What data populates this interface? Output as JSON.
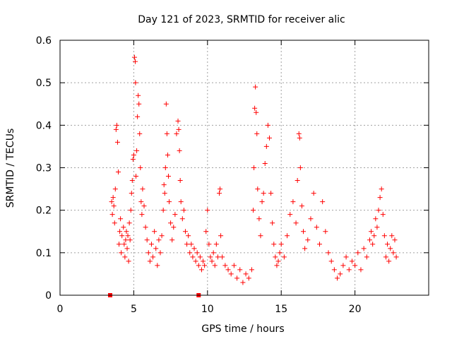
{
  "chart_data": {
    "type": "scatter",
    "title": "Day 121 of 2023, SRMTID for receiver alic",
    "xlabel": "GPS time / hours",
    "ylabel": "SRMTID / TECUs",
    "xlim": [
      0,
      25
    ],
    "ylim": [
      0,
      0.6
    ],
    "xticks": [
      0,
      5,
      10,
      15,
      20
    ],
    "xtick_labels": [
      "0",
      "5",
      "10",
      "15",
      "20"
    ],
    "yticks": [
      0,
      0.1,
      0.2,
      0.3,
      0.4,
      0.5,
      0.6
    ],
    "ytick_labels": [
      "0",
      "0.1",
      "0.2",
      "0.3",
      "0.4",
      "0.5",
      "0.6"
    ],
    "grid": true,
    "marker": "+",
    "series": [
      {
        "name": "SRMTID",
        "color": "#ff0000",
        "points": [
          [
            3.5,
            0.22
          ],
          [
            3.55,
            0.19
          ],
          [
            3.6,
            0.23
          ],
          [
            3.65,
            0.21
          ],
          [
            3.7,
            0.17
          ],
          [
            3.75,
            0.25
          ],
          [
            3.8,
            0.39
          ],
          [
            3.85,
            0.4
          ],
          [
            3.9,
            0.36
          ],
          [
            3.95,
            0.29
          ],
          [
            4.0,
            0.12
          ],
          [
            4.05,
            0.15
          ],
          [
            4.1,
            0.18
          ],
          [
            4.15,
            0.1
          ],
          [
            4.2,
            0.14
          ],
          [
            4.3,
            0.16
          ],
          [
            4.35,
            0.12
          ],
          [
            4.4,
            0.09
          ],
          [
            4.45,
            0.13
          ],
          [
            4.5,
            0.15
          ],
          [
            4.55,
            0.11
          ],
          [
            4.6,
            0.14
          ],
          [
            4.65,
            0.08
          ],
          [
            4.7,
            0.17
          ],
          [
            4.75,
            0.13
          ],
          [
            4.8,
            0.2
          ],
          [
            4.85,
            0.24
          ],
          [
            4.9,
            0.27
          ],
          [
            4.95,
            0.32
          ],
          [
            5.0,
            0.33
          ],
          [
            5.05,
            0.56
          ],
          [
            5.1,
            0.55
          ],
          [
            5.12,
            0.5
          ],
          [
            5.15,
            0.28
          ],
          [
            5.2,
            0.34
          ],
          [
            5.25,
            0.42
          ],
          [
            5.3,
            0.47
          ],
          [
            5.35,
            0.45
          ],
          [
            5.4,
            0.38
          ],
          [
            5.45,
            0.3
          ],
          [
            5.5,
            0.22
          ],
          [
            5.55,
            0.19
          ],
          [
            5.6,
            0.25
          ],
          [
            5.7,
            0.21
          ],
          [
            5.8,
            0.16
          ],
          [
            5.9,
            0.13
          ],
          [
            6.0,
            0.1
          ],
          [
            6.1,
            0.08
          ],
          [
            6.2,
            0.12
          ],
          [
            6.3,
            0.09
          ],
          [
            6.4,
            0.15
          ],
          [
            6.5,
            0.11
          ],
          [
            6.6,
            0.07
          ],
          [
            6.7,
            0.13
          ],
          [
            6.8,
            0.1
          ],
          [
            6.9,
            0.14
          ],
          [
            7.0,
            0.2
          ],
          [
            7.05,
            0.26
          ],
          [
            7.1,
            0.24
          ],
          [
            7.15,
            0.3
          ],
          [
            7.2,
            0.45
          ],
          [
            7.25,
            0.38
          ],
          [
            7.3,
            0.33
          ],
          [
            7.35,
            0.28
          ],
          [
            7.4,
            0.22
          ],
          [
            7.5,
            0.17
          ],
          [
            7.6,
            0.13
          ],
          [
            7.7,
            0.16
          ],
          [
            7.8,
            0.19
          ],
          [
            7.9,
            0.38
          ],
          [
            8.0,
            0.41
          ],
          [
            8.05,
            0.39
          ],
          [
            8.1,
            0.34
          ],
          [
            8.15,
            0.27
          ],
          [
            8.2,
            0.22
          ],
          [
            8.3,
            0.18
          ],
          [
            8.4,
            0.2
          ],
          [
            8.5,
            0.15
          ],
          [
            8.6,
            0.12
          ],
          [
            8.7,
            0.14
          ],
          [
            8.8,
            0.1
          ],
          [
            8.9,
            0.12
          ],
          [
            9.0,
            0.09
          ],
          [
            9.1,
            0.11
          ],
          [
            9.2,
            0.08
          ],
          [
            9.3,
            0.1
          ],
          [
            9.4,
            0.07
          ],
          [
            9.5,
            0.09
          ],
          [
            9.6,
            0.06
          ],
          [
            9.7,
            0.08
          ],
          [
            9.8,
            0.07
          ],
          [
            9.9,
            0.15
          ],
          [
            10.0,
            0.2
          ],
          [
            10.1,
            0.12
          ],
          [
            10.2,
            0.09
          ],
          [
            10.3,
            0.08
          ],
          [
            10.4,
            0.1
          ],
          [
            10.5,
            0.07
          ],
          [
            10.6,
            0.12
          ],
          [
            10.7,
            0.09
          ],
          [
            10.8,
            0.24
          ],
          [
            10.85,
            0.25
          ],
          [
            10.9,
            0.14
          ],
          [
            11.0,
            0.09
          ],
          [
            11.2,
            0.07
          ],
          [
            11.4,
            0.06
          ],
          [
            11.6,
            0.05
          ],
          [
            11.8,
            0.07
          ],
          [
            12.0,
            0.04
          ],
          [
            12.2,
            0.06
          ],
          [
            12.4,
            0.03
          ],
          [
            12.6,
            0.05
          ],
          [
            12.8,
            0.04
          ],
          [
            13.0,
            0.06
          ],
          [
            13.1,
            0.2
          ],
          [
            13.15,
            0.3
          ],
          [
            13.2,
            0.44
          ],
          [
            13.25,
            0.49
          ],
          [
            13.3,
            0.43
          ],
          [
            13.35,
            0.38
          ],
          [
            13.4,
            0.25
          ],
          [
            13.5,
            0.18
          ],
          [
            13.6,
            0.14
          ],
          [
            13.7,
            0.22
          ],
          [
            13.8,
            0.24
          ],
          [
            13.9,
            0.31
          ],
          [
            14.0,
            0.35
          ],
          [
            14.1,
            0.4
          ],
          [
            14.2,
            0.37
          ],
          [
            14.3,
            0.24
          ],
          [
            14.4,
            0.17
          ],
          [
            14.5,
            0.12
          ],
          [
            14.6,
            0.09
          ],
          [
            14.7,
            0.07
          ],
          [
            14.8,
            0.08
          ],
          [
            14.9,
            0.1
          ],
          [
            15.0,
            0.12
          ],
          [
            15.2,
            0.09
          ],
          [
            15.4,
            0.14
          ],
          [
            15.6,
            0.19
          ],
          [
            15.8,
            0.22
          ],
          [
            16.0,
            0.17
          ],
          [
            16.1,
            0.27
          ],
          [
            16.2,
            0.38
          ],
          [
            16.25,
            0.37
          ],
          [
            16.3,
            0.3
          ],
          [
            16.4,
            0.21
          ],
          [
            16.5,
            0.15
          ],
          [
            16.6,
            0.11
          ],
          [
            16.8,
            0.13
          ],
          [
            17.0,
            0.18
          ],
          [
            17.2,
            0.24
          ],
          [
            17.4,
            0.16
          ],
          [
            17.6,
            0.12
          ],
          [
            17.8,
            0.22
          ],
          [
            18.0,
            0.15
          ],
          [
            18.2,
            0.1
          ],
          [
            18.4,
            0.08
          ],
          [
            18.6,
            0.06
          ],
          [
            18.8,
            0.04
          ],
          [
            19.0,
            0.05
          ],
          [
            19.2,
            0.07
          ],
          [
            19.4,
            0.09
          ],
          [
            19.6,
            0.06
          ],
          [
            19.8,
            0.08
          ],
          [
            20.0,
            0.07
          ],
          [
            20.2,
            0.1
          ],
          [
            20.4,
            0.06
          ],
          [
            20.6,
            0.11
          ],
          [
            20.8,
            0.09
          ],
          [
            21.0,
            0.13
          ],
          [
            21.1,
            0.15
          ],
          [
            21.2,
            0.12
          ],
          [
            21.3,
            0.14
          ],
          [
            21.4,
            0.18
          ],
          [
            21.5,
            0.16
          ],
          [
            21.6,
            0.2
          ],
          [
            21.7,
            0.23
          ],
          [
            21.8,
            0.25
          ],
          [
            21.9,
            0.19
          ],
          [
            22.0,
            0.14
          ],
          [
            22.1,
            0.09
          ],
          [
            22.2,
            0.12
          ],
          [
            22.3,
            0.08
          ],
          [
            22.4,
            0.11
          ],
          [
            22.5,
            0.14
          ],
          [
            22.6,
            0.1
          ],
          [
            22.7,
            0.13
          ],
          [
            22.8,
            0.09
          ]
        ]
      }
    ],
    "markers_at_zero": [
      3.4,
      9.4
    ]
  }
}
